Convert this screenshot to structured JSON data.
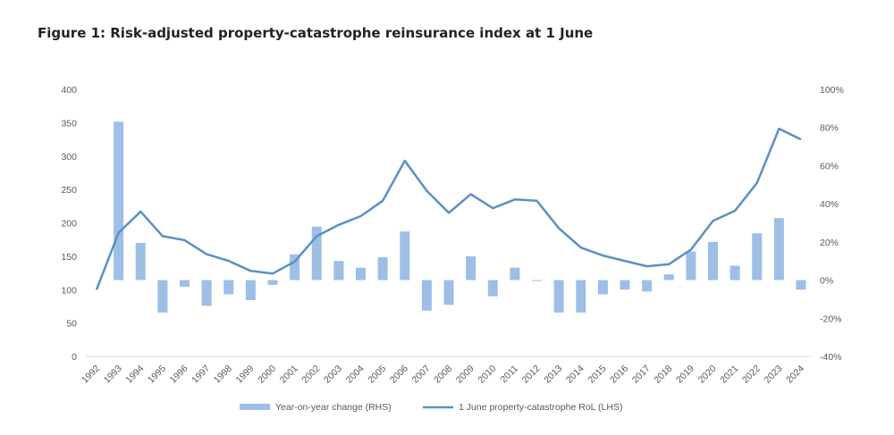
{
  "title": "Figure 1: Risk-adjusted property-catastrophe reinsurance index at 1 June",
  "colors": {
    "bar": "#9dbfe6",
    "line": "#5b8fc6",
    "text": "#595959"
  },
  "chart_data": {
    "type": "bar+line",
    "title": "Figure 1: Risk-adjusted property-catastrophe reinsurance index at 1 June",
    "categories": [
      "1992",
      "1993",
      "1994",
      "1995",
      "1996",
      "1997",
      "1998",
      "1999",
      "2000",
      "2001",
      "2002",
      "2003",
      "2004",
      "2005",
      "2006",
      "2007",
      "2008",
      "2009",
      "2010",
      "2011",
      "2012",
      "2013",
      "2014",
      "2015",
      "2016",
      "2017",
      "2018",
      "2019",
      "2020",
      "2021",
      "2022",
      "2023",
      "2024"
    ],
    "left_axis": {
      "range": [
        0,
        400
      ],
      "ticks": [
        0,
        50,
        100,
        150,
        200,
        250,
        300,
        350,
        400
      ]
    },
    "right_axis": {
      "range": [
        -40,
        100
      ],
      "unit": "%",
      "ticks": [
        "-40%",
        "-20%",
        "0%",
        "20%",
        "40%",
        "60%",
        "80%",
        "100%"
      ]
    },
    "series": [
      {
        "name": "Year-on-year change (RHS)",
        "type": "bar",
        "axis": "right",
        "values": [
          null,
          83,
          19.5,
          -17,
          -3.5,
          -13.5,
          -7.5,
          -10.5,
          -2.5,
          13.5,
          28,
          10,
          6.5,
          12,
          25.5,
          -16,
          -13,
          12.5,
          -8.5,
          6.5,
          -0.5,
          -17,
          -17,
          -7.5,
          -5,
          -6,
          3,
          15,
          20,
          7.5,
          24.5,
          32.5,
          -5
        ]
      },
      {
        "name": "1 June property-catastrophe RoL (LHS)",
        "type": "line",
        "axis": "left",
        "values": [
          100,
          185,
          217,
          180,
          174,
          153,
          143,
          128,
          124,
          142,
          180,
          197,
          210,
          233,
          293,
          248,
          215,
          243,
          222,
          235,
          233,
          192,
          163,
          151,
          143,
          135,
          138,
          160,
          203,
          218,
          260,
          341,
          325
        ]
      }
    ],
    "grid": false,
    "legend": "bottom"
  }
}
